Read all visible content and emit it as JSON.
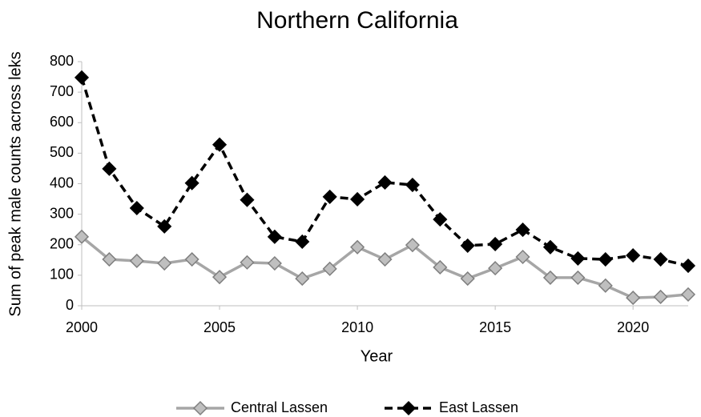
{
  "chart_data": {
    "type": "line",
    "title": "Northern California",
    "x_label": "Year",
    "y_label": "Sum of peak male counts across leks",
    "x": [
      2000,
      2001,
      2002,
      2003,
      2004,
      2005,
      2006,
      2007,
      2008,
      2009,
      2010,
      2011,
      2012,
      2013,
      2014,
      2015,
      2016,
      2017,
      2018,
      2019,
      2020,
      2021,
      2022
    ],
    "series": [
      {
        "name": "Central Lassen",
        "color": "#a6a6a6",
        "marker_fill": "#bfbfbf",
        "marker_edge": "#7f7f7f",
        "dashed": false,
        "values": [
          226,
          152,
          147,
          139,
          152,
          94,
          142,
          139,
          89,
          121,
          192,
          152,
          199,
          126,
          89,
          123,
          160,
          92,
          92,
          66,
          26,
          29,
          37
        ]
      },
      {
        "name": "East Lassen",
        "color": "#000000",
        "marker_fill": "#000000",
        "marker_edge": "#000000",
        "dashed": true,
        "values": [
          748,
          449,
          320,
          260,
          402,
          528,
          347,
          226,
          210,
          357,
          349,
          404,
          396,
          283,
          197,
          202,
          249,
          192,
          155,
          152,
          165,
          152,
          131
        ]
      }
    ],
    "xlim": [
      2000,
      2022
    ],
    "xticks": [
      2000,
      2005,
      2010,
      2015,
      2020
    ],
    "ylim": [
      0,
      800
    ],
    "yticks": [
      0,
      100,
      200,
      300,
      400,
      500,
      600,
      700,
      800
    ],
    "legend": "bottom"
  }
}
